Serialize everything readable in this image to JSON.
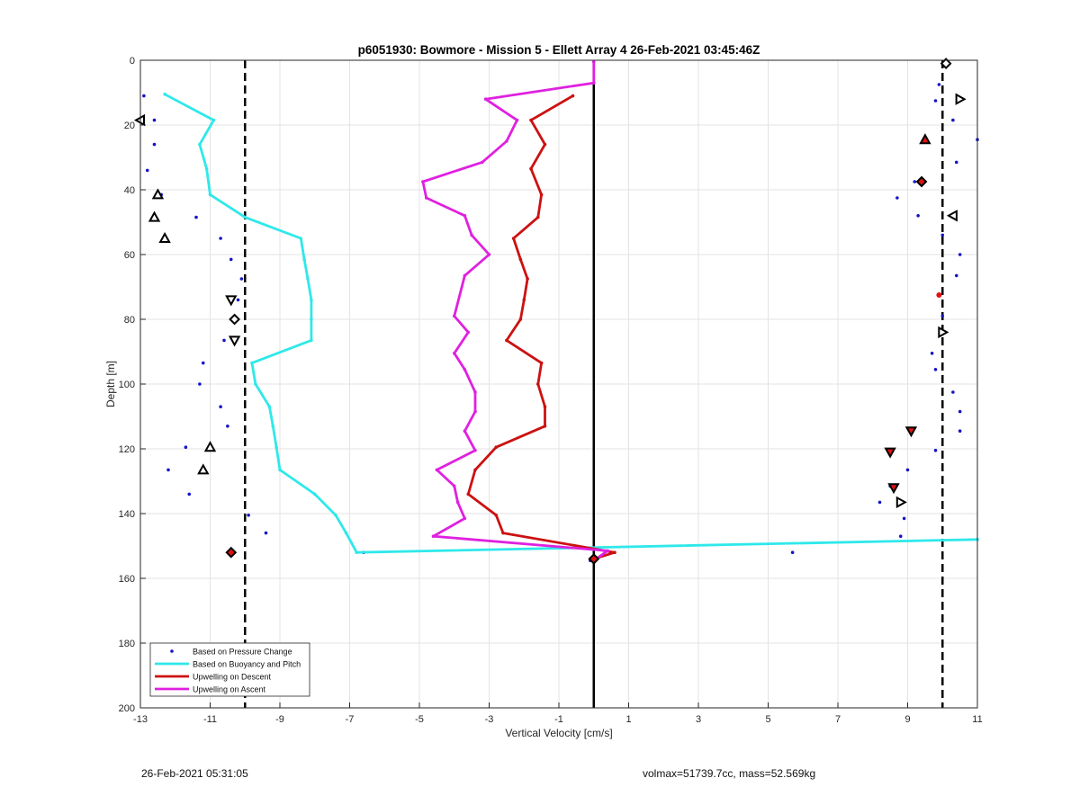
{
  "colors": {
    "pressure": "#1515c8",
    "buoyancy": "#2fe8ea",
    "descent": "#cc1111",
    "ascent": "#e020e0",
    "grid": "#e3e3e3",
    "marker_red_fill": "#dd1111"
  },
  "footer": {
    "timestamp": "26-Feb-2021 05:31:05",
    "params": "volmax=51739.7cc, mass=52.569kg"
  },
  "chart_data": {
    "type": "line",
    "title": "p6051930: Bowmore - Mission 5 - Ellett Array 4 26-Feb-2021 03:45:46Z",
    "xlabel": "Vertical Velocity [cm/s]",
    "ylabel": "Depth [m]",
    "xlim": [
      -13,
      11
    ],
    "ylim": [
      0,
      200
    ],
    "y_reversed": true,
    "grid": true,
    "xticks": [
      -13,
      -11,
      -9,
      -7,
      -5,
      -3,
      -1,
      1,
      3,
      5,
      7,
      9,
      11
    ],
    "xtick_labels": [
      "-13",
      "-11",
      "-9",
      "-7",
      "-5",
      "-3",
      "-1",
      "1",
      "3",
      "5",
      "7",
      "9",
      "11"
    ],
    "yticks": [
      0,
      20,
      40,
      60,
      80,
      100,
      120,
      140,
      160,
      180,
      200
    ],
    "ytick_labels": [
      "0",
      "20",
      "40",
      "60",
      "80",
      "100",
      "120",
      "140",
      "160",
      "180",
      "200"
    ],
    "legend_position": "bottom-left",
    "vertical_lines": [
      {
        "x": -10,
        "style": "dashed"
      },
      {
        "x": 0,
        "style": "solid"
      },
      {
        "x": 10,
        "style": "dashed"
      }
    ],
    "series": [
      {
        "name": "Based on Pressure Change",
        "kind": "points",
        "points": [
          [
            -12.9,
            11
          ],
          [
            -12.6,
            18.5
          ],
          [
            -12.6,
            26
          ],
          [
            -12.8,
            34
          ],
          [
            -12.4,
            41.5
          ],
          [
            -11.4,
            48.5
          ],
          [
            -10.7,
            55
          ],
          [
            -10.4,
            61.5
          ],
          [
            -10.1,
            67.5
          ],
          [
            -10.2,
            74
          ],
          [
            -10.3,
            80
          ],
          [
            -10.6,
            86.5
          ],
          [
            -11.2,
            93.5
          ],
          [
            -11.3,
            100
          ],
          [
            -10.7,
            107
          ],
          [
            -10.5,
            113
          ],
          [
            -11.7,
            119.5
          ],
          [
            -12.2,
            126.5
          ],
          [
            -11.6,
            134
          ],
          [
            -9.9,
            140.5
          ],
          [
            -9.4,
            146
          ],
          [
            -10.4,
            152
          ],
          [
            -6.6,
            152
          ],
          [
            5.7,
            152
          ],
          [
            -0.1,
            154.5
          ],
          [
            9.9,
            7.5
          ],
          [
            9.8,
            12.5
          ],
          [
            10.3,
            18.5
          ],
          [
            11.0,
            24.5
          ],
          [
            10.4,
            31.5
          ],
          [
            9.2,
            37.5
          ],
          [
            8.7,
            42.5
          ],
          [
            9.3,
            48
          ],
          [
            10.0,
            54
          ],
          [
            10.5,
            60
          ],
          [
            10.4,
            66.5
          ],
          [
            10.0,
            79
          ],
          [
            9.7,
            90.5
          ],
          [
            9.8,
            95.5
          ],
          [
            10.3,
            102.5
          ],
          [
            10.5,
            108.5
          ],
          [
            10.5,
            114.5
          ],
          [
            9.8,
            120.5
          ],
          [
            9.0,
            126.5
          ],
          [
            8.5,
            131.5
          ],
          [
            8.2,
            136.5
          ],
          [
            8.9,
            141.5
          ],
          [
            8.8,
            147
          ]
        ]
      },
      {
        "name": "Based on Buoyancy and Pitch",
        "kind": "line",
        "points": [
          [
            -12.3,
            10.5
          ],
          [
            -10.9,
            18.5
          ],
          [
            -11.3,
            26
          ],
          [
            -11.1,
            33.5
          ],
          [
            -11.0,
            41.5
          ],
          [
            -10.0,
            48.5
          ],
          [
            -8.4,
            55
          ],
          [
            -8.3,
            61.5
          ],
          [
            -8.2,
            67.5
          ],
          [
            -8.1,
            74
          ],
          [
            -8.1,
            80
          ],
          [
            -8.1,
            86.5
          ],
          [
            -9.8,
            93.5
          ],
          [
            -9.7,
            100
          ],
          [
            -9.3,
            107
          ],
          [
            -9.2,
            113
          ],
          [
            -9.1,
            119.5
          ],
          [
            -9.0,
            126.5
          ],
          [
            -8.0,
            134
          ],
          [
            -7.4,
            140.5
          ],
          [
            -7.1,
            146
          ],
          [
            -6.8,
            152
          ],
          [
            11,
            148
          ]
        ]
      },
      {
        "name": "Upwelling on Descent",
        "kind": "line",
        "points": [
          [
            -0.6,
            11
          ],
          [
            -1.8,
            18.5
          ],
          [
            -1.4,
            26
          ],
          [
            -1.8,
            33.5
          ],
          [
            -1.5,
            41.5
          ],
          [
            -1.6,
            48.5
          ],
          [
            -2.3,
            55
          ],
          [
            -2.1,
            61.5
          ],
          [
            -1.9,
            67.5
          ],
          [
            -2.0,
            74
          ],
          [
            -2.1,
            80
          ],
          [
            -2.5,
            86.5
          ],
          [
            -1.5,
            93.5
          ],
          [
            -1.6,
            100
          ],
          [
            -1.4,
            107
          ],
          [
            -1.4,
            113
          ],
          [
            -2.8,
            119.5
          ],
          [
            -3.4,
            126.5
          ],
          [
            -3.6,
            134
          ],
          [
            -2.8,
            140.5
          ],
          [
            -2.6,
            146
          ],
          [
            0.6,
            152
          ],
          [
            0.0,
            154
          ]
        ]
      },
      {
        "name": "Upwelling on Ascent",
        "kind": "line",
        "points": [
          [
            0.0,
            0.5
          ],
          [
            0.0,
            7
          ],
          [
            -3.1,
            12
          ],
          [
            -2.2,
            18.5
          ],
          [
            -2.5,
            25
          ],
          [
            -3.2,
            31.5
          ],
          [
            -4.9,
            37.5
          ],
          [
            -4.8,
            42.5
          ],
          [
            -3.7,
            48
          ],
          [
            -3.5,
            54
          ],
          [
            -3.0,
            60
          ],
          [
            -3.7,
            66.5
          ],
          [
            -4.0,
            79
          ],
          [
            -3.6,
            84
          ],
          [
            -4.0,
            90.5
          ],
          [
            -3.7,
            95.5
          ],
          [
            -3.4,
            102.5
          ],
          [
            -3.4,
            108.5
          ],
          [
            -3.7,
            114.5
          ],
          [
            -3.4,
            120.5
          ],
          [
            -4.5,
            126.5
          ],
          [
            -4.0,
            131.5
          ],
          [
            -3.9,
            136.5
          ],
          [
            -3.7,
            141.5
          ],
          [
            -4.6,
            147
          ],
          [
            0.4,
            151.5
          ],
          [
            0.0,
            154.5
          ]
        ]
      }
    ],
    "markers": [
      {
        "shape": "left",
        "x": -13.0,
        "y": 18.5,
        "fill": "none"
      },
      {
        "shape": "up",
        "x": -12.5,
        "y": 41.5,
        "fill": "none"
      },
      {
        "shape": "up",
        "x": -12.6,
        "y": 48.5,
        "fill": "none"
      },
      {
        "shape": "up",
        "x": -12.3,
        "y": 55,
        "fill": "none"
      },
      {
        "shape": "down",
        "x": -10.4,
        "y": 74,
        "fill": "none"
      },
      {
        "shape": "diamond",
        "x": -10.3,
        "y": 80,
        "fill": "none"
      },
      {
        "shape": "down",
        "x": -10.3,
        "y": 86.5,
        "fill": "none"
      },
      {
        "shape": "up",
        "x": -11.0,
        "y": 119.5,
        "fill": "none"
      },
      {
        "shape": "up",
        "x": -11.2,
        "y": 126.5,
        "fill": "none"
      },
      {
        "shape": "diamond",
        "x": -10.4,
        "y": 152,
        "fill": "red"
      },
      {
        "shape": "diamond",
        "x": 10.1,
        "y": 1,
        "fill": "none"
      },
      {
        "shape": "right",
        "x": 10.5,
        "y": 12,
        "fill": "none"
      },
      {
        "shape": "up",
        "x": 9.5,
        "y": 24.5,
        "fill": "red"
      },
      {
        "shape": "diamond",
        "x": 9.4,
        "y": 37.5,
        "fill": "red"
      },
      {
        "shape": "left",
        "x": 10.3,
        "y": 48,
        "fill": "none"
      },
      {
        "shape": "dot",
        "x": 9.9,
        "y": 72.5,
        "fill": "red"
      },
      {
        "shape": "right",
        "x": 10.0,
        "y": 84,
        "fill": "none"
      },
      {
        "shape": "down",
        "x": 9.1,
        "y": 114.5,
        "fill": "red"
      },
      {
        "shape": "down",
        "x": 8.5,
        "y": 121,
        "fill": "red"
      },
      {
        "shape": "down",
        "x": 8.6,
        "y": 132,
        "fill": "red"
      },
      {
        "shape": "right",
        "x": 8.8,
        "y": 136.5,
        "fill": "none"
      },
      {
        "shape": "diamond",
        "x": 0.0,
        "y": 154,
        "fill": "red"
      }
    ]
  }
}
